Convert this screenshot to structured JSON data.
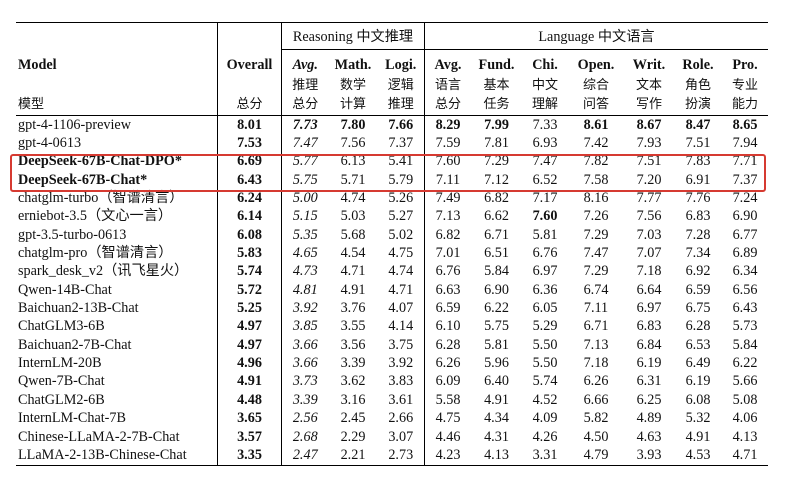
{
  "groups": {
    "reasoning": "Reasoning 中文推理",
    "language": "Language 中文语言"
  },
  "headers": {
    "model": "Model",
    "model_cn": "模型",
    "overall": "Overall",
    "overall_cn": "总分",
    "r_avg": "Avg.",
    "r_avg_cn1": "推理",
    "r_avg_cn2": "总分",
    "math": "Math.",
    "math_cn1": "数学",
    "math_cn2": "计算",
    "logi": "Logi.",
    "logi_cn1": "逻辑",
    "logi_cn2": "推理",
    "l_avg": "Avg.",
    "l_avg_cn1": "语言",
    "l_avg_cn2": "总分",
    "fund": "Fund.",
    "fund_cn1": "基本",
    "fund_cn2": "任务",
    "chi": "Chi.",
    "chi_cn1": "中文",
    "chi_cn2": "理解",
    "open": "Open.",
    "open_cn1": "综合",
    "open_cn2": "问答",
    "writ": "Writ.",
    "writ_cn1": "文本",
    "writ_cn2": "写作",
    "role": "Role.",
    "role_cn1": "角色",
    "role_cn2": "扮演",
    "pro": "Pro.",
    "pro_cn1": "专业",
    "pro_cn2": "能力"
  },
  "rows": [
    {
      "model": "gpt-4-1106-preview",
      "overall": "8.01",
      "r_avg": "7.73",
      "math": "7.80",
      "logi": "7.66",
      "l_avg": "8.29",
      "fund": "7.99",
      "chi": "7.33",
      "open": "8.61",
      "writ": "8.67",
      "role": "8.47",
      "pro": "8.65"
    },
    {
      "model": "gpt-4-0613",
      "overall": "7.53",
      "r_avg": "7.47",
      "math": "7.56",
      "logi": "7.37",
      "l_avg": "7.59",
      "fund": "7.81",
      "chi": "6.93",
      "open": "7.42",
      "writ": "7.93",
      "role": "7.51",
      "pro": "7.94"
    },
    {
      "model": "DeepSeek-67B-Chat-DPO*",
      "overall": "6.69",
      "r_avg": "5.77",
      "math": "6.13",
      "logi": "5.41",
      "l_avg": "7.60",
      "fund": "7.29",
      "chi": "7.47",
      "open": "7.82",
      "writ": "7.51",
      "role": "7.83",
      "pro": "7.71"
    },
    {
      "model": "DeepSeek-67B-Chat*",
      "overall": "6.43",
      "r_avg": "5.75",
      "math": "5.71",
      "logi": "5.79",
      "l_avg": "7.11",
      "fund": "7.12",
      "chi": "6.52",
      "open": "7.58",
      "writ": "7.20",
      "role": "6.91",
      "pro": "7.37"
    },
    {
      "model": "chatglm-turbo（智谱清言）",
      "overall": "6.24",
      "r_avg": "5.00",
      "math": "4.74",
      "logi": "5.26",
      "l_avg": "7.49",
      "fund": "6.82",
      "chi": "7.17",
      "open": "8.16",
      "writ": "7.77",
      "role": "7.76",
      "pro": "7.24"
    },
    {
      "model": "erniebot-3.5（文心一言）",
      "overall": "6.14",
      "r_avg": "5.15",
      "math": "5.03",
      "logi": "5.27",
      "l_avg": "7.13",
      "fund": "6.62",
      "chi": "7.60",
      "open": "7.26",
      "writ": "7.56",
      "role": "6.83",
      "pro": "6.90"
    },
    {
      "model": "gpt-3.5-turbo-0613",
      "overall": "6.08",
      "r_avg": "5.35",
      "math": "5.68",
      "logi": "5.02",
      "l_avg": "6.82",
      "fund": "6.71",
      "chi": "5.81",
      "open": "7.29",
      "writ": "7.03",
      "role": "7.28",
      "pro": "6.77"
    },
    {
      "model": "chatglm-pro（智谱清言）",
      "overall": "5.83",
      "r_avg": "4.65",
      "math": "4.54",
      "logi": "4.75",
      "l_avg": "7.01",
      "fund": "6.51",
      "chi": "6.76",
      "open": "7.47",
      "writ": "7.07",
      "role": "7.34",
      "pro": "6.89"
    },
    {
      "model": "spark_desk_v2（讯飞星火）",
      "overall": "5.74",
      "r_avg": "4.73",
      "math": "4.71",
      "logi": "4.74",
      "l_avg": "6.76",
      "fund": "5.84",
      "chi": "6.97",
      "open": "7.29",
      "writ": "7.18",
      "role": "6.92",
      "pro": "6.34"
    },
    {
      "model": "Qwen-14B-Chat",
      "overall": "5.72",
      "r_avg": "4.81",
      "math": "4.91",
      "logi": "4.71",
      "l_avg": "6.63",
      "fund": "6.90",
      "chi": "6.36",
      "open": "6.74",
      "writ": "6.64",
      "role": "6.59",
      "pro": "6.56"
    },
    {
      "model": "Baichuan2-13B-Chat",
      "overall": "5.25",
      "r_avg": "3.92",
      "math": "3.76",
      "logi": "4.07",
      "l_avg": "6.59",
      "fund": "6.22",
      "chi": "6.05",
      "open": "7.11",
      "writ": "6.97",
      "role": "6.75",
      "pro": "6.43"
    },
    {
      "model": "ChatGLM3-6B",
      "overall": "4.97",
      "r_avg": "3.85",
      "math": "3.55",
      "logi": "4.14",
      "l_avg": "6.10",
      "fund": "5.75",
      "chi": "5.29",
      "open": "6.71",
      "writ": "6.83",
      "role": "6.28",
      "pro": "5.73"
    },
    {
      "model": "Baichuan2-7B-Chat",
      "overall": "4.97",
      "r_avg": "3.66",
      "math": "3.56",
      "logi": "3.75",
      "l_avg": "6.28",
      "fund": "5.81",
      "chi": "5.50",
      "open": "7.13",
      "writ": "6.84",
      "role": "6.53",
      "pro": "5.84"
    },
    {
      "model": "InternLM-20B",
      "overall": "4.96",
      "r_avg": "3.66",
      "math": "3.39",
      "logi": "3.92",
      "l_avg": "6.26",
      "fund": "5.96",
      "chi": "5.50",
      "open": "7.18",
      "writ": "6.19",
      "role": "6.49",
      "pro": "6.22"
    },
    {
      "model": "Qwen-7B-Chat",
      "overall": "4.91",
      "r_avg": "3.73",
      "math": "3.62",
      "logi": "3.83",
      "l_avg": "6.09",
      "fund": "6.40",
      "chi": "5.74",
      "open": "6.26",
      "writ": "6.31",
      "role": "6.19",
      "pro": "5.66"
    },
    {
      "model": "ChatGLM2-6B",
      "overall": "4.48",
      "r_avg": "3.39",
      "math": "3.16",
      "logi": "3.61",
      "l_avg": "5.58",
      "fund": "4.91",
      "chi": "4.52",
      "open": "6.66",
      "writ": "6.25",
      "role": "6.08",
      "pro": "5.08"
    },
    {
      "model": "InternLM-Chat-7B",
      "overall": "3.65",
      "r_avg": "2.56",
      "math": "2.45",
      "logi": "2.66",
      "l_avg": "4.75",
      "fund": "4.34",
      "chi": "4.09",
      "open": "5.82",
      "writ": "4.89",
      "role": "5.32",
      "pro": "4.06"
    },
    {
      "model": "Chinese-LLaMA-2-7B-Chat",
      "overall": "3.57",
      "r_avg": "2.68",
      "math": "2.29",
      "logi": "3.07",
      "l_avg": "4.46",
      "fund": "4.31",
      "chi": "4.26",
      "open": "4.50",
      "writ": "4.63",
      "role": "4.91",
      "pro": "4.13"
    },
    {
      "model": "LLaMA-2-13B-Chinese-Chat",
      "overall": "3.35",
      "r_avg": "2.47",
      "math": "2.21",
      "logi": "2.73",
      "l_avg": "4.23",
      "fund": "4.13",
      "chi": "3.31",
      "open": "4.79",
      "writ": "3.93",
      "role": "4.53",
      "pro": "4.71"
    }
  ],
  "bold_cells": [
    [
      0,
      "overall"
    ],
    [
      0,
      "r_avg"
    ],
    [
      0,
      "math"
    ],
    [
      0,
      "logi"
    ],
    [
      0,
      "l_avg"
    ],
    [
      0,
      "fund"
    ],
    [
      0,
      "open"
    ],
    [
      0,
      "writ"
    ],
    [
      0,
      "role"
    ],
    [
      0,
      "pro"
    ],
    [
      1,
      "overall"
    ],
    [
      2,
      "model"
    ],
    [
      2,
      "overall"
    ],
    [
      3,
      "model"
    ],
    [
      3,
      "overall"
    ],
    [
      4,
      "overall"
    ],
    [
      5,
      "overall"
    ],
    [
      5,
      "chi"
    ],
    [
      6,
      "overall"
    ],
    [
      7,
      "overall"
    ],
    [
      8,
      "overall"
    ],
    [
      9,
      "overall"
    ],
    [
      10,
      "overall"
    ],
    [
      11,
      "overall"
    ],
    [
      12,
      "overall"
    ],
    [
      13,
      "overall"
    ],
    [
      14,
      "overall"
    ],
    [
      15,
      "overall"
    ],
    [
      16,
      "overall"
    ],
    [
      17,
      "overall"
    ],
    [
      18,
      "overall"
    ]
  ],
  "highlight_color": "#d63a31"
}
